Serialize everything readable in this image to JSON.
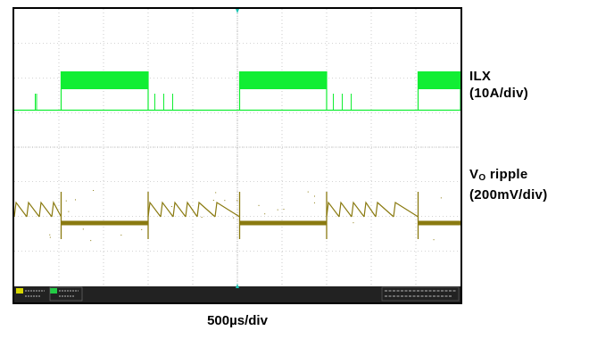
{
  "labels": {
    "ilx_name": "ILX",
    "ilx_scale": "(10A/div)",
    "vo_name": "V",
    "vo_sub": "O",
    "vo_rest": " ripple",
    "vo_scale": "(200mV/div)",
    "time_scale": "500µs/div"
  },
  "colors": {
    "ilx_trace": "#11ee33",
    "vo_trace": "#8a7a10",
    "grid": "#a8a8a8",
    "frame": "#000000",
    "status_bar": "#222222",
    "marker": "#19c4b4"
  },
  "chart_data": {
    "type": "line",
    "grid": {
      "h_divisions": 10,
      "v_divisions": 8,
      "dotted": true
    },
    "series": [
      {
        "name": "ILX",
        "scale": "10A/div",
        "baseline_level": 0,
        "high_level": 1,
        "pulse_windows": [
          [
            1.05,
            3.0
          ],
          [
            5.05,
            7.0
          ],
          [
            9.05,
            10.0
          ]
        ],
        "spikes": [
          0.47,
          0.5,
          3.15,
          3.35,
          3.55,
          7.15,
          7.35,
          7.55
        ],
        "ripple": true
      },
      {
        "name": "VO ripple",
        "scale": "200mV/div",
        "flat_windows": [
          [
            1.05,
            3.0
          ],
          [
            5.05,
            7.0
          ],
          [
            9.05,
            10.0
          ]
        ],
        "sawtooth_teeth": [
          [
            0.0,
            0.28
          ],
          [
            0.28,
            0.56
          ],
          [
            0.56,
            0.84
          ],
          [
            0.84,
            1.05
          ],
          [
            3.0,
            3.28
          ],
          [
            3.28,
            3.56
          ],
          [
            3.56,
            3.84
          ],
          [
            3.84,
            4.1
          ],
          [
            4.1,
            4.5
          ],
          [
            4.5,
            5.05
          ],
          [
            7.0,
            7.28
          ],
          [
            7.28,
            7.56
          ],
          [
            7.56,
            7.84
          ],
          [
            7.84,
            8.1
          ],
          [
            8.1,
            8.5
          ],
          [
            8.5,
            9.05
          ]
        ],
        "drop_times": [
          1.05,
          3.0,
          5.05,
          7.0,
          9.05
        ],
        "ripple": true
      }
    ]
  }
}
